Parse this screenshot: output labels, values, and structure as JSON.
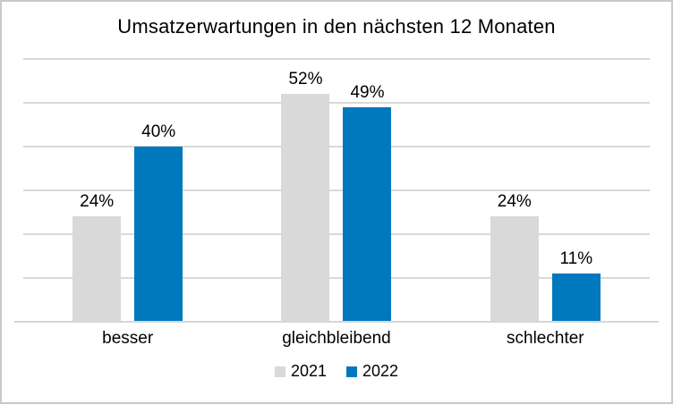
{
  "chart_data": {
    "type": "bar",
    "title": "Umsatzerwartungen in den nächsten 12 Monaten",
    "categories": [
      "besser",
      "gleichbleibend",
      "schlechter"
    ],
    "series": [
      {
        "name": "2021",
        "color": "#d9d9d9",
        "values": [
          24,
          52,
          24
        ],
        "labels": [
          "24%",
          "52%",
          "24%"
        ]
      },
      {
        "name": "2022",
        "color": "#0078be",
        "values": [
          40,
          49,
          11
        ],
        "labels": [
          "40%",
          "49%",
          "11%"
        ]
      }
    ],
    "ylim": [
      0,
      60
    ],
    "gridline_step": 10,
    "grid": true,
    "gridline_color": "#d9d9d9",
    "legend_position": "bottom",
    "data_labels": true
  }
}
